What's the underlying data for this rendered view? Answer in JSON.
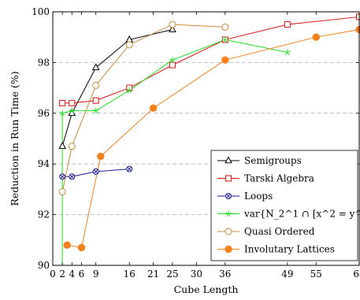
{
  "chart_data": {
    "type": "line",
    "title": "",
    "xlabel": "Cube Length",
    "ylabel": "Reduction in Run Time (%)",
    "xlim": [
      0,
      64
    ],
    "ylim": [
      90,
      100
    ],
    "x_ticks": [
      0,
      2,
      4,
      6,
      9,
      16,
      21,
      25,
      30,
      36,
      49,
      55,
      64
    ],
    "x_tick_labels": [
      "0",
      "2",
      "4",
      "6",
      "9",
      "16",
      "21",
      "25",
      "30",
      "36",
      "49",
      "55",
      "64"
    ],
    "y_ticks": [
      90,
      92,
      94,
      96,
      98,
      100
    ],
    "y_tick_labels": [
      "90",
      "92",
      "94",
      "96",
      "98",
      "100"
    ],
    "grid": "horizontal dashed",
    "legend_position": "bottom-right",
    "series": [
      {
        "name": "Semigroups",
        "color": "#000000",
        "marker": "triangle-open",
        "x": [
          2,
          4,
          9,
          16,
          25
        ],
        "y": [
          94.7,
          96.0,
          97.8,
          98.9,
          99.3
        ]
      },
      {
        "name": "Tarski Algebra",
        "color": "#dd1111",
        "marker": "square-open",
        "x": [
          2,
          4,
          9,
          16,
          25,
          36,
          49,
          64
        ],
        "y": [
          96.4,
          96.4,
          96.5,
          97.0,
          97.9,
          98.9,
          99.5,
          99.8
        ]
      },
      {
        "name": "Loops",
        "color": "#1a1a99",
        "marker": "circle-cross",
        "x": [
          2,
          4,
          9,
          16
        ],
        "y": [
          93.5,
          93.5,
          93.7,
          93.8
        ]
      },
      {
        "name": "var{N_2^1 ∩ [x^2 = y^2]}",
        "color": "#22dd22",
        "marker": "star",
        "x": [
          2,
          2,
          4,
          9,
          16,
          25,
          36,
          49
        ],
        "y": [
          90,
          96.0,
          96.1,
          96.1,
          96.9,
          98.1,
          98.9,
          98.4
        ]
      },
      {
        "name": "Quasi Ordered",
        "color": "#cc8833",
        "marker": "circle-open",
        "x": [
          2,
          4,
          9,
          16,
          25,
          36
        ],
        "y": [
          92.9,
          94.7,
          97.1,
          98.7,
          99.5,
          99.4
        ]
      },
      {
        "name": "Involutary Lattices",
        "color": "#f5821e",
        "marker": "circle-filled",
        "x": [
          3,
          6,
          10,
          21,
          36,
          55,
          64
        ],
        "y": [
          90.8,
          90.7,
          94.3,
          96.2,
          98.1,
          99.0,
          99.3
        ]
      }
    ]
  }
}
